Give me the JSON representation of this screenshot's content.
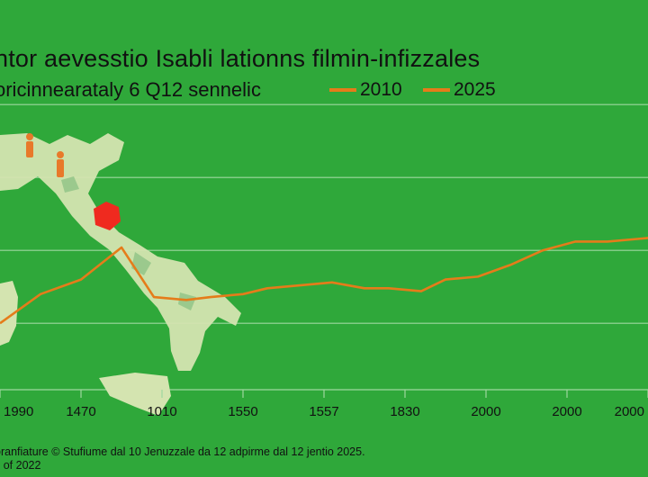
{
  "title": "ntor aevesstio Isabli lationns filmin-infizzales",
  "subtitle": "oricinnearataly 6 Q12 sennelic",
  "footer": {
    "line1": "oranfiature © Stufiume dal 10 Jenuzzale da 12 adpirme dal 12 jentio 2025.",
    "line2": "s of 2022"
  },
  "colors": {
    "background": "#2fa83a",
    "grid": "#9ed79f",
    "line": "#e57c1a",
    "map": "#d4e4b0",
    "highlight": "#ef2a1f",
    "marker": "#e8792a"
  },
  "chart_data": {
    "type": "line",
    "title": "ntor aevesstio Isabli lationns filmin-infizzales",
    "subtitle": "oricinnearataly 6 Q12 sennelic",
    "legend": [
      "2010",
      "2025"
    ],
    "legend_position": "top-right",
    "grid": true,
    "x_tick_labels": [
      "1990",
      "1470",
      "1010",
      "1550",
      "1557",
      "1830",
      "2000",
      "2000",
      "2000"
    ],
    "ylim": [
      0,
      100
    ],
    "series": [
      {
        "name": "2010",
        "x": [
          0,
          0.5,
          1.0,
          1.5,
          1.9,
          2.3,
          2.6,
          3.0,
          3.3,
          3.7,
          4.1,
          4.5,
          4.8,
          5.2,
          5.5,
          5.9,
          6.3,
          6.7,
          7.1,
          7.5,
          7.9,
          8.3,
          8.6,
          9.0
        ],
        "values": [
          20,
          30,
          35,
          46,
          29,
          28,
          29,
          30,
          32,
          33,
          34,
          32,
          32,
          31,
          35,
          36,
          40,
          45,
          48,
          48,
          49,
          50,
          51,
          52
        ]
      }
    ]
  }
}
